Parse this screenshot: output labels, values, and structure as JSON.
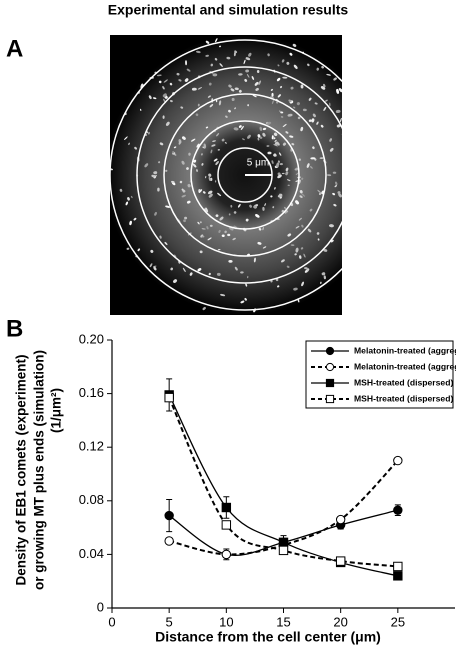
{
  "title": "Experimental and simulation results",
  "panel_labels": [
    "A",
    "B"
  ],
  "image": {
    "scale_bar_label": "5 μm"
  },
  "chart_data": {
    "type": "line",
    "x": [
      5,
      10,
      15,
      20,
      25
    ],
    "xlim": [
      0,
      30
    ],
    "xticks": [
      0,
      5,
      10,
      15,
      20,
      25
    ],
    "ylim": [
      0,
      0.2
    ],
    "yticks": [
      0,
      0.04,
      0.08,
      0.12,
      0.16,
      {
        "value": 0.2,
        "label": "0.20"
      }
    ],
    "x_label": "Distance from the cell center (μm)",
    "y_label": [
      "Density of EB1 comets (experiment)",
      "or growing MT plus ends (simulation)",
      "(1/μm²)"
    ],
    "legend": "upper right",
    "series": [
      {
        "name": "Melatonin-treated (aggregated) experiment",
        "color": "#000000",
        "marker": "circle",
        "filled": true,
        "dashed": false,
        "values": [
          0.069,
          0.04,
          0.049,
          0.062,
          0.073
        ],
        "errors": [
          0.012,
          0.004,
          0.003,
          0.003,
          0.004
        ]
      },
      {
        "name": "Melatonin-treated (aggregated) simulation",
        "color": "#000000",
        "marker": "circle",
        "filled": false,
        "dashed": true,
        "values": [
          0.05,
          0.04,
          0.047,
          0.066,
          0.11
        ]
      },
      {
        "name": "MSH-treated (dispersed) experiment",
        "color": "#000000",
        "marker": "square",
        "filled": true,
        "dashed": false,
        "values": [
          0.159,
          0.075,
          0.049,
          0.034,
          0.024
        ],
        "errors": [
          0.012,
          0.008,
          0.005,
          0.002,
          0.002
        ]
      },
      {
        "name": "MSH-treated (dispersed) simulation",
        "color": "#000000",
        "marker": "square",
        "filled": false,
        "dashed": true,
        "values": [
          0.157,
          0.062,
          0.043,
          0.035,
          0.031
        ]
      }
    ]
  }
}
